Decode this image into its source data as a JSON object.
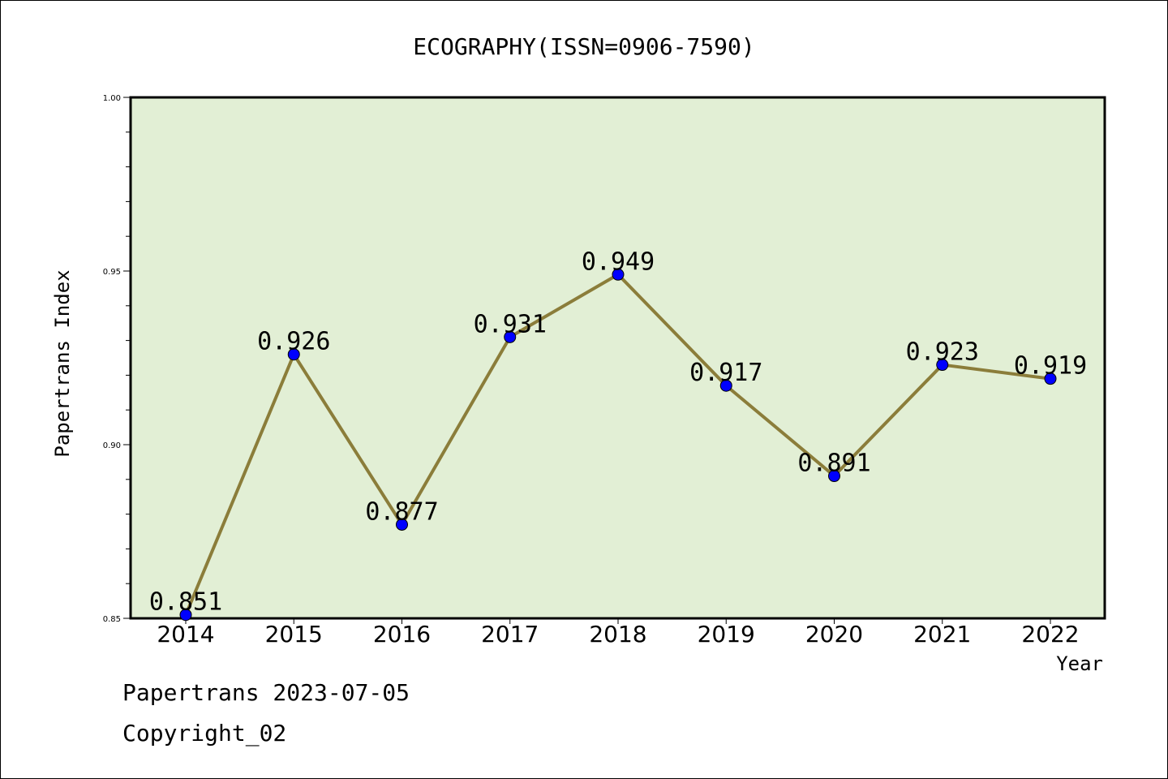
{
  "chart_data": {
    "type": "line",
    "title": "ECOGRAPHY(ISSN=0906-7590)",
    "xlabel": "Year",
    "ylabel": "Papertrans Index",
    "categories": [
      "2014",
      "2015",
      "2016",
      "2017",
      "2018",
      "2019",
      "2020",
      "2021",
      "2022"
    ],
    "series": [
      {
        "values": [
          0.851,
          0.926,
          0.877,
          0.931,
          0.949,
          0.917,
          0.891,
          0.923,
          0.919
        ]
      }
    ],
    "data_labels": [
      "0.851",
      "0.926",
      "0.877",
      "0.931",
      "0.949",
      "0.917",
      "0.891",
      "0.923",
      "0.919"
    ],
    "ylim": [
      0.85,
      1.0
    ],
    "y_ticks": [
      0.85,
      0.9,
      0.95,
      1.0
    ],
    "y_tick_labels": [
      "0.85",
      "0.90",
      "0.95",
      "1.00"
    ],
    "y_minor_step": 0.01,
    "grid": false,
    "colors": {
      "plot_background": "#e2efd5",
      "line": "#8b7d3a",
      "marker": "#0000ff"
    }
  },
  "footer": {
    "line1": "Papertrans 2023-07-05",
    "line2": "Copyright_02"
  }
}
